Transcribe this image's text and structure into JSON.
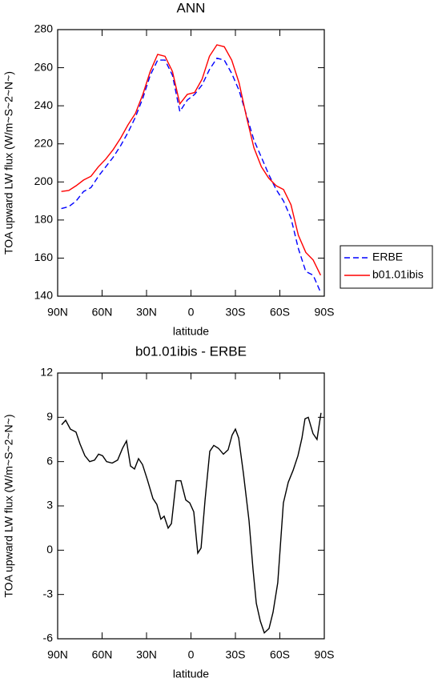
{
  "chart_data": [
    {
      "type": "line",
      "title": "ANN",
      "x_label": "latitude",
      "y_label": "TOA upward LW flux (W/m~S~2~N~)",
      "x": [
        87.5,
        82.5,
        77.5,
        72.5,
        67.5,
        62.5,
        57.5,
        52.5,
        47.5,
        42.5,
        37.5,
        32.5,
        27.5,
        22.5,
        17.5,
        12.5,
        7.5,
        2.5,
        -2.5,
        -7.5,
        -12.5,
        -17.5,
        -22.5,
        -27.5,
        -32.5,
        -37.5,
        -42.5,
        -47.5,
        -52.5,
        -57.5,
        -62.5,
        -67.5,
        -72.5,
        -77.5,
        -82.5,
        -87.5
      ],
      "series": [
        {
          "name": "ERBE",
          "color": "#0000ff",
          "line_style": "dashed",
          "values": [
            186,
            187,
            190,
            195,
            197,
            203,
            208,
            213,
            219,
            226,
            234,
            244,
            256,
            264,
            264,
            256,
            237,
            243,
            246,
            251,
            259,
            265,
            264,
            257,
            248,
            235,
            222,
            213,
            204,
            196,
            190,
            181,
            165,
            153,
            151,
            142
          ]
        },
        {
          "name": "b01.01ibis",
          "color": "#ff0000",
          "line_style": "solid",
          "values": [
            195,
            195.5,
            198,
            201,
            203,
            208,
            212,
            217,
            223,
            230,
            236,
            246,
            258,
            267,
            266,
            258,
            241,
            246,
            247,
            254,
            266,
            272,
            271,
            264,
            252,
            234,
            218,
            208,
            202,
            198,
            196,
            188,
            172,
            163,
            159,
            151
          ]
        }
      ],
      "xlim": [
        90,
        -90
      ],
      "xticks": [
        {
          "value": 90,
          "label": "90N"
        },
        {
          "value": 60,
          "label": "60N"
        },
        {
          "value": 30,
          "label": "30N"
        },
        0,
        {
          "value": -30,
          "label": "30S"
        },
        {
          "value": -60,
          "label": "60S"
        },
        {
          "value": -90,
          "label": "90S"
        }
      ],
      "ylim": [
        140,
        280
      ],
      "yticks": [
        140,
        160,
        180,
        200,
        220,
        240,
        260,
        280
      ],
      "legend": "right"
    },
    {
      "type": "line",
      "title": "b01.01ibis - ERBE",
      "x_label": "latitude",
      "y_label": "TOA upward LW flux (W/m~S~2~N~)",
      "x": [
        87.3,
        84.6,
        81.4,
        77.6,
        74.9,
        71.6,
        68.4,
        65.1,
        62.4,
        59.7,
        57.0,
        53.2,
        49.5,
        46.2,
        43.5,
        40.8,
        38.1,
        35.4,
        32.7,
        29.5,
        25.7,
        23.0,
        20.3,
        18.1,
        15.4,
        13.2,
        10.0,
        6.8,
        3.5,
        0.8,
        -1.9,
        -4.6,
        -6.8,
        -9.5,
        -12.7,
        -15.4,
        -18.6,
        -21.9,
        -25.1,
        -27.8,
        -30.0,
        -32.2,
        -35.4,
        -39.2,
        -41.9,
        -44.1,
        -46.8,
        -49.5,
        -52.7,
        -55.4,
        -58.6,
        -62.4,
        -65.7,
        -68.9,
        -72.2,
        -74.9,
        -77.0,
        -79.2,
        -82.4,
        -85.1,
        -87.8
      ],
      "values": [
        8.5,
        8.8,
        8.2,
        8.0,
        7.2,
        6.4,
        6.0,
        6.1,
        6.5,
        6.4,
        6.0,
        5.9,
        6.1,
        6.9,
        7.4,
        5.7,
        5.5,
        6.2,
        5.8,
        4.8,
        3.5,
        3.1,
        2.1,
        2.3,
        1.5,
        1.8,
        4.7,
        4.7,
        3.4,
        3.2,
        2.6,
        -0.2,
        0.15,
        3.4,
        6.7,
        7.1,
        6.9,
        6.5,
        6.8,
        7.8,
        8.2,
        7.6,
        5.2,
        2.0,
        -1.3,
        -3.6,
        -4.8,
        -5.6,
        -5.3,
        -4.2,
        -2.2,
        3.2,
        4.6,
        5.4,
        6.4,
        7.6,
        8.9,
        9.0,
        7.9,
        7.5,
        9.3
      ],
      "color": "#000000",
      "xlim": [
        90,
        -90
      ],
      "xticks": [
        {
          "value": 90,
          "label": "90N"
        },
        {
          "value": 60,
          "label": "60N"
        },
        {
          "value": 30,
          "label": "30N"
        },
        0,
        {
          "value": -30,
          "label": "30S"
        },
        {
          "value": -60,
          "label": "60S"
        },
        {
          "value": -90,
          "label": "90S"
        }
      ],
      "ylim": [
        -6,
        12
      ],
      "yticks": [
        -6,
        -3,
        0,
        3,
        6,
        9,
        12
      ]
    }
  ]
}
